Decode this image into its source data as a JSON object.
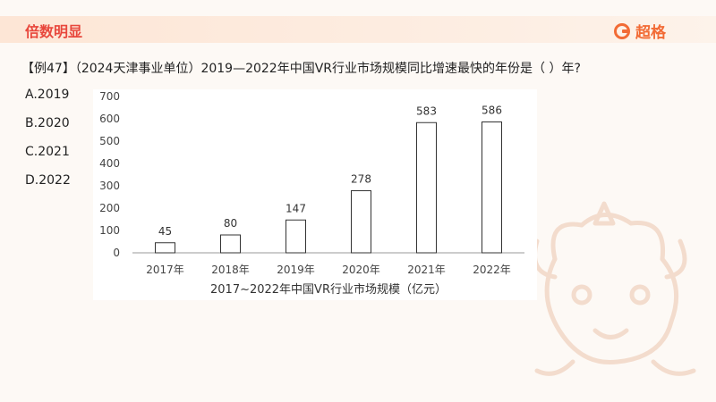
{
  "header": {
    "title": "倍数明显",
    "brand": "超格"
  },
  "question": {
    "text": "【例47】（2024天津事业单位）2019—2022年中国VR行业市场规模同比增速最快的年份是（   ）年?"
  },
  "options": [
    {
      "label": "A.2019"
    },
    {
      "label": "B.2020"
    },
    {
      "label": "C.2021"
    },
    {
      "label": "D.2022"
    }
  ],
  "colors": {
    "accent": "#e8473c",
    "brand": "#f26b35",
    "bar_stroke": "#333333",
    "bar_fill": "#ffffff"
  },
  "chart_data": {
    "type": "bar",
    "title": "",
    "xlabel": "2017~2022年中国VR行业市场规模（亿元）",
    "ylabel": "",
    "categories": [
      "2017年",
      "2018年",
      "2019年",
      "2020年",
      "2021年",
      "2022年"
    ],
    "values": [
      45,
      80,
      147,
      278,
      583,
      586
    ],
    "data_labels": [
      "45",
      "80",
      "147",
      "278",
      "583",
      "586"
    ],
    "yticks": [
      0,
      100,
      200,
      300,
      400,
      500,
      600,
      700
    ],
    "ylim": [
      0,
      700
    ],
    "grid": false,
    "legend": "none"
  }
}
